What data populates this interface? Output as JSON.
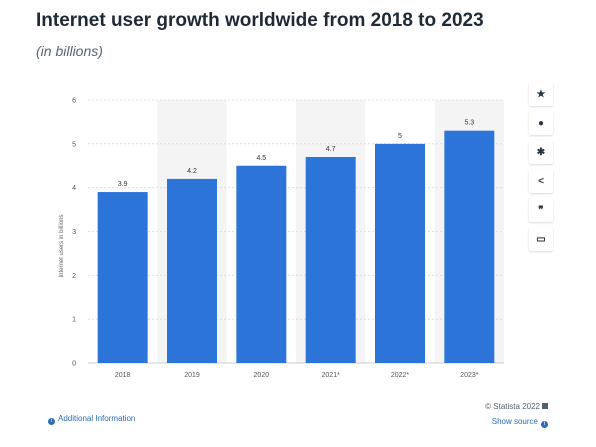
{
  "header": {
    "title": "Internet user growth worldwide from 2018 to 2023",
    "subtitle": "(in billions)"
  },
  "chart_data": {
    "type": "bar",
    "categories": [
      "2018",
      "2019",
      "2020",
      "2021*",
      "2022*",
      "2023*"
    ],
    "values": [
      3.9,
      4.2,
      4.5,
      4.7,
      5,
      5.3
    ],
    "value_labels": [
      "3.9",
      "4.2",
      "4.5",
      "4.7",
      "5",
      "5.3"
    ],
    "ylabel": "Internet users in billions",
    "xlabel": "",
    "ylim": [
      0,
      6
    ],
    "yticks": [
      "0",
      "1",
      "2",
      "3",
      "4",
      "5",
      "6"
    ],
    "grid": true,
    "bar_color": "#2d74d8",
    "band_color": "#f4f4f4"
  },
  "toolbar": [
    {
      "icon": "star-icon",
      "glyph": "★"
    },
    {
      "icon": "bell-icon",
      "glyph": "●"
    },
    {
      "icon": "gear-icon",
      "glyph": "✱"
    },
    {
      "icon": "share-icon",
      "glyph": "<"
    },
    {
      "icon": "quote-icon",
      "glyph": "❞"
    },
    {
      "icon": "print-icon",
      "glyph": "▭"
    }
  ],
  "footer": {
    "additional_info": "Additional Information",
    "copyright": "© Statista 2022",
    "show_source": "Show source"
  }
}
